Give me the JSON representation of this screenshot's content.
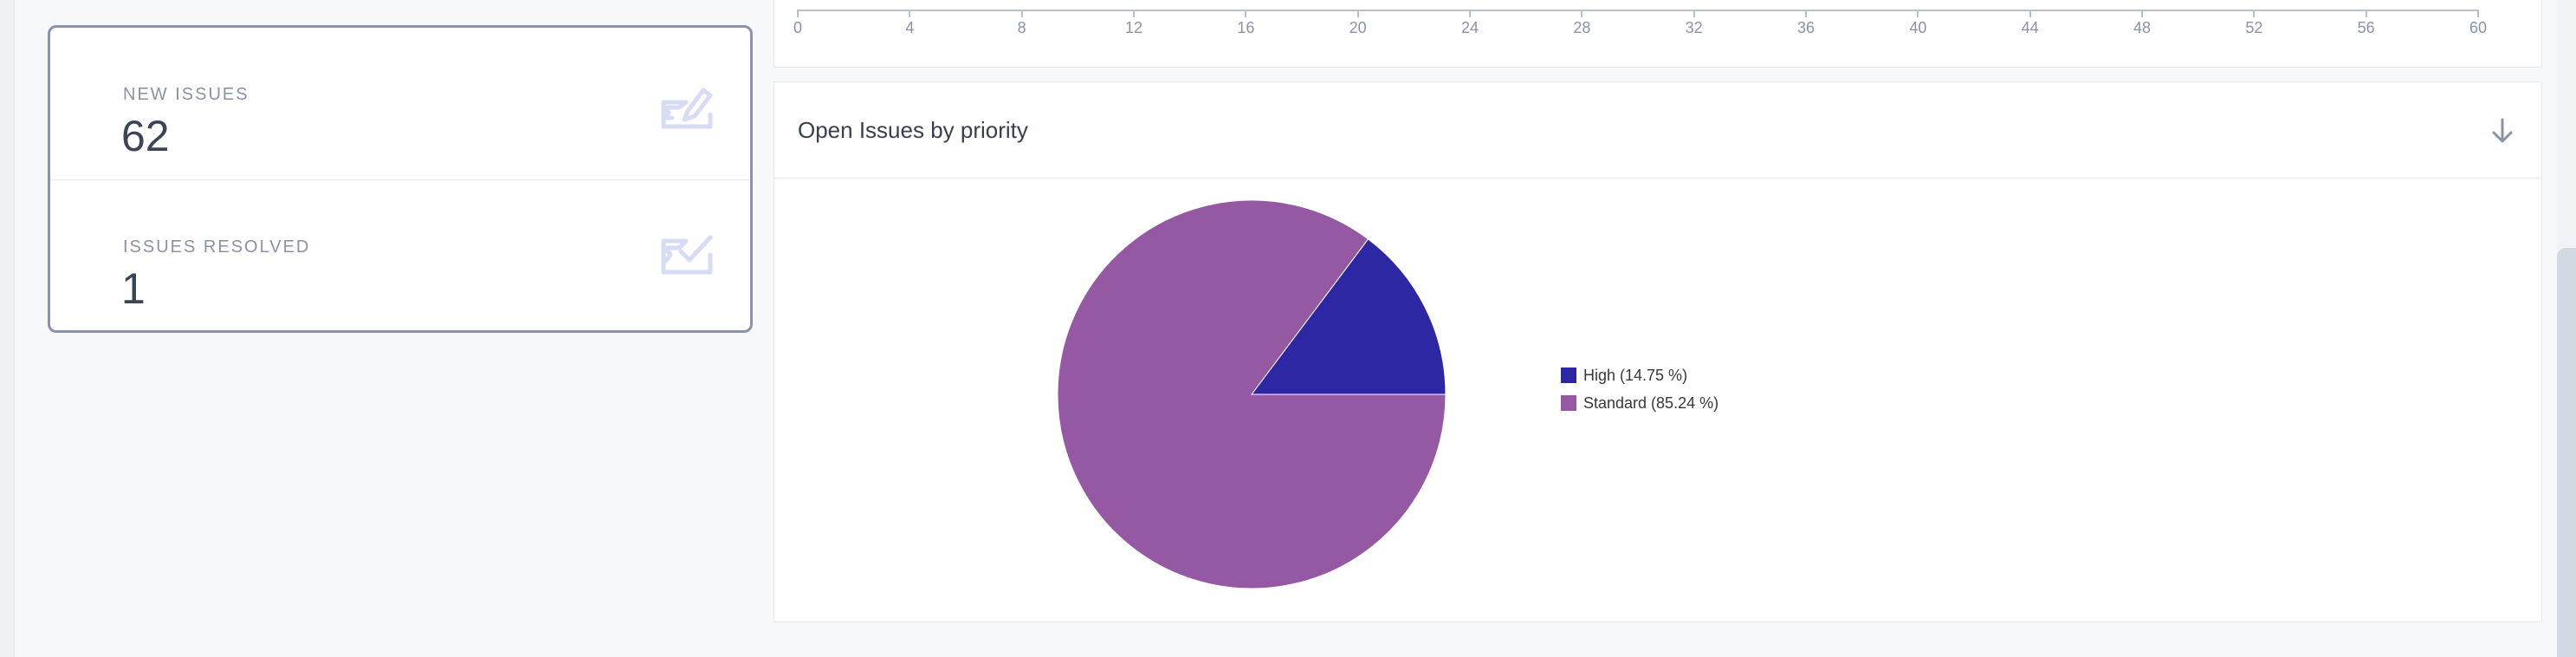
{
  "stats": {
    "new_issues": {
      "label": "NEW ISSUES",
      "value": "62",
      "icon": "edit-pencil-icon"
    },
    "issues_resolved": {
      "label": "ISSUES RESOLVED",
      "value": "1",
      "icon": "check-mail-icon"
    }
  },
  "top_axis": {
    "ticks": [
      "0",
      "4",
      "8",
      "12",
      "16",
      "20",
      "24",
      "28",
      "32",
      "36",
      "40",
      "44",
      "48",
      "52",
      "56",
      "60"
    ]
  },
  "pie_panel": {
    "title": "Open Issues by priority",
    "download_icon": "arrow-down-icon"
  },
  "chart_data": {
    "type": "pie",
    "title": "Open Issues by priority",
    "slices": [
      {
        "label": "High (14.75 %)",
        "value": 14.75,
        "color": "#2e27a4"
      },
      {
        "label": "Standard (85.24 %)",
        "value": 85.24,
        "color": "#9558a2"
      }
    ],
    "legend": "right"
  },
  "colors": {
    "accent_border": "#8a93ab",
    "icon_tint": "#d7dcf4"
  }
}
